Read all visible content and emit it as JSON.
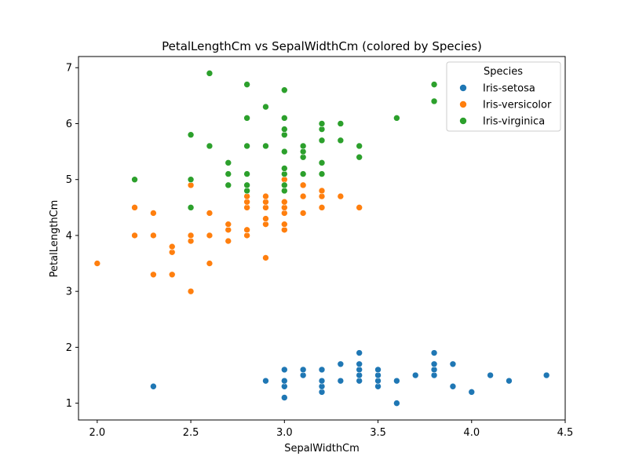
{
  "chart_data": {
    "type": "scatter",
    "title": "PetalLengthCm vs SepalWidthCm (colored by Species)",
    "xlabel": "SepalWidthCm",
    "ylabel": "PetalLengthCm",
    "xlim": [
      1.9,
      4.5
    ],
    "ylim": [
      0.7,
      7.2
    ],
    "xticks": [
      "2.0",
      "2.5",
      "3.0",
      "3.5",
      "4.0",
      "4.5"
    ],
    "yticks": [
      "1",
      "2",
      "3",
      "4",
      "5",
      "6",
      "7"
    ],
    "grid": false,
    "legend": {
      "title": "Species",
      "position": "top-right"
    },
    "series": [
      {
        "name": "Iris-setosa",
        "color": "#1f77b4",
        "points": [
          [
            2.3,
            1.3
          ],
          [
            2.9,
            1.4
          ],
          [
            3.0,
            1.1
          ],
          [
            3.0,
            1.3
          ],
          [
            3.0,
            1.4
          ],
          [
            3.0,
            1.6
          ],
          [
            3.1,
            1.5
          ],
          [
            3.1,
            1.6
          ],
          [
            3.2,
            1.2
          ],
          [
            3.2,
            1.3
          ],
          [
            3.2,
            1.4
          ],
          [
            3.2,
            1.6
          ],
          [
            3.3,
            1.4
          ],
          [
            3.3,
            1.7
          ],
          [
            3.4,
            1.4
          ],
          [
            3.4,
            1.5
          ],
          [
            3.4,
            1.6
          ],
          [
            3.4,
            1.7
          ],
          [
            3.4,
            1.9
          ],
          [
            3.5,
            1.3
          ],
          [
            3.5,
            1.4
          ],
          [
            3.5,
            1.5
          ],
          [
            3.5,
            1.6
          ],
          [
            3.6,
            1.0
          ],
          [
            3.6,
            1.4
          ],
          [
            3.7,
            1.5
          ],
          [
            3.8,
            1.5
          ],
          [
            3.8,
            1.6
          ],
          [
            3.8,
            1.7
          ],
          [
            3.8,
            1.9
          ],
          [
            3.9,
            1.3
          ],
          [
            3.9,
            1.7
          ],
          [
            4.0,
            1.2
          ],
          [
            4.1,
            1.5
          ],
          [
            4.2,
            1.4
          ],
          [
            4.4,
            1.5
          ]
        ]
      },
      {
        "name": "Iris-versicolor",
        "color": "#ff7f0e",
        "points": [
          [
            2.0,
            3.5
          ],
          [
            2.2,
            4.0
          ],
          [
            2.2,
            4.5
          ],
          [
            2.3,
            3.3
          ],
          [
            2.3,
            4.0
          ],
          [
            2.3,
            4.4
          ],
          [
            2.4,
            3.3
          ],
          [
            2.4,
            3.7
          ],
          [
            2.4,
            3.8
          ],
          [
            2.5,
            3.0
          ],
          [
            2.5,
            3.9
          ],
          [
            2.5,
            4.0
          ],
          [
            2.5,
            4.9
          ],
          [
            2.6,
            3.5
          ],
          [
            2.6,
            4.0
          ],
          [
            2.6,
            4.4
          ],
          [
            2.7,
            3.9
          ],
          [
            2.7,
            4.1
          ],
          [
            2.7,
            4.2
          ],
          [
            2.8,
            4.0
          ],
          [
            2.8,
            4.1
          ],
          [
            2.8,
            4.5
          ],
          [
            2.8,
            4.6
          ],
          [
            2.8,
            4.7
          ],
          [
            2.9,
            3.6
          ],
          [
            2.9,
            4.2
          ],
          [
            2.9,
            4.3
          ],
          [
            2.9,
            4.5
          ],
          [
            2.9,
            4.6
          ],
          [
            2.9,
            4.7
          ],
          [
            3.0,
            4.1
          ],
          [
            3.0,
            4.2
          ],
          [
            3.0,
            4.4
          ],
          [
            3.0,
            4.5
          ],
          [
            3.0,
            4.6
          ],
          [
            3.0,
            5.0
          ],
          [
            3.1,
            4.4
          ],
          [
            3.1,
            4.7
          ],
          [
            3.1,
            4.9
          ],
          [
            3.2,
            4.5
          ],
          [
            3.2,
            4.7
          ],
          [
            3.2,
            4.8
          ],
          [
            3.3,
            4.7
          ],
          [
            3.4,
            4.5
          ]
        ]
      },
      {
        "name": "Iris-virginica",
        "color": "#2ca02c",
        "points": [
          [
            2.2,
            5.0
          ],
          [
            2.5,
            4.5
          ],
          [
            2.5,
            5.0
          ],
          [
            2.5,
            5.8
          ],
          [
            2.6,
            5.6
          ],
          [
            2.6,
            6.9
          ],
          [
            2.7,
            4.9
          ],
          [
            2.7,
            5.1
          ],
          [
            2.7,
            5.3
          ],
          [
            2.8,
            4.8
          ],
          [
            2.8,
            4.9
          ],
          [
            2.8,
            5.1
          ],
          [
            2.8,
            5.6
          ],
          [
            2.8,
            6.1
          ],
          [
            2.8,
            6.7
          ],
          [
            2.9,
            5.6
          ],
          [
            2.9,
            6.3
          ],
          [
            3.0,
            4.8
          ],
          [
            3.0,
            4.9
          ],
          [
            3.0,
            5.1
          ],
          [
            3.0,
            5.2
          ],
          [
            3.0,
            5.5
          ],
          [
            3.0,
            5.8
          ],
          [
            3.0,
            5.9
          ],
          [
            3.0,
            6.1
          ],
          [
            3.0,
            6.6
          ],
          [
            3.1,
            5.1
          ],
          [
            3.1,
            5.4
          ],
          [
            3.1,
            5.5
          ],
          [
            3.1,
            5.6
          ],
          [
            3.2,
            5.1
          ],
          [
            3.2,
            5.3
          ],
          [
            3.2,
            5.7
          ],
          [
            3.2,
            5.9
          ],
          [
            3.2,
            6.0
          ],
          [
            3.3,
            5.7
          ],
          [
            3.3,
            6.0
          ],
          [
            3.4,
            5.4
          ],
          [
            3.4,
            5.6
          ],
          [
            3.6,
            6.1
          ],
          [
            3.8,
            6.4
          ],
          [
            3.8,
            6.7
          ]
        ]
      }
    ]
  }
}
